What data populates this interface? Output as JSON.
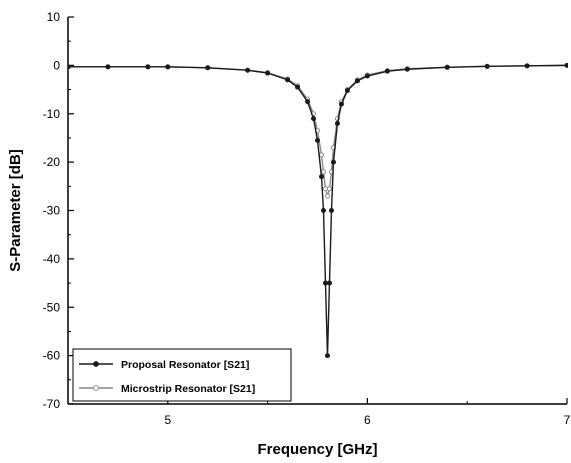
{
  "chart_data": {
    "type": "line",
    "title": "",
    "xlabel": "Frequency [GHz]",
    "ylabel": "S-Parameter [dB]",
    "xlim": [
      4.5,
      7
    ],
    "ylim": [
      -70,
      10
    ],
    "x_ticks": [
      5,
      6,
      7
    ],
    "x_tick_labels": [
      "5",
      "6",
      "7"
    ],
    "y_ticks": [
      10,
      0,
      -10,
      -20,
      -30,
      -40,
      -50,
      -60,
      -70
    ],
    "y_tick_labels": [
      "10",
      "0",
      "-10",
      "-20",
      "-30",
      "-40",
      "-50",
      "-60",
      "-70"
    ],
    "grid": false,
    "legend_position": "bottom-left",
    "series": [
      {
        "name": "Proposal Resonator [S21]",
        "color": "#1a1a1a",
        "marker": "filled-circle",
        "x": [
          4.5,
          4.7,
          4.9,
          5.0,
          5.2,
          5.4,
          5.5,
          5.6,
          5.65,
          5.7,
          5.73,
          5.75,
          5.77,
          5.78,
          5.79,
          5.8,
          5.81,
          5.82,
          5.83,
          5.85,
          5.87,
          5.9,
          5.95,
          6.0,
          6.1,
          6.2,
          6.4,
          6.6,
          6.8,
          7.0
        ],
        "y": [
          -0.3,
          -0.3,
          -0.3,
          -0.3,
          -0.5,
          -1.0,
          -1.6,
          -3.0,
          -4.5,
          -7.5,
          -11.0,
          -15.5,
          -23.0,
          -30.0,
          -45.0,
          -60.0,
          -45.0,
          -30.0,
          -20.0,
          -12.0,
          -8.0,
          -5.2,
          -3.2,
          -2.2,
          -1.2,
          -0.8,
          -0.4,
          -0.2,
          -0.1,
          0.0
        ]
      },
      {
        "name": "Microstrip Resonator [S21]",
        "color": "#8a8a8a",
        "marker": "open-circle",
        "x": [
          4.5,
          4.7,
          4.9,
          5.0,
          5.2,
          5.4,
          5.5,
          5.6,
          5.65,
          5.7,
          5.73,
          5.75,
          5.77,
          5.78,
          5.79,
          5.8,
          5.81,
          5.82,
          5.83,
          5.85,
          5.87,
          5.9,
          5.95,
          6.0,
          6.1,
          6.2,
          6.4,
          6.6,
          6.8,
          7.0
        ],
        "y": [
          -0.3,
          -0.3,
          -0.3,
          -0.3,
          -0.5,
          -1.0,
          -1.5,
          -2.8,
          -4.2,
          -7.0,
          -10.0,
          -13.5,
          -18.5,
          -22.0,
          -25.5,
          -27.0,
          -25.5,
          -22.0,
          -17.0,
          -11.0,
          -7.5,
          -5.0,
          -3.0,
          -2.0,
          -1.1,
          -0.7,
          -0.4,
          -0.2,
          -0.1,
          0.0
        ]
      }
    ]
  }
}
